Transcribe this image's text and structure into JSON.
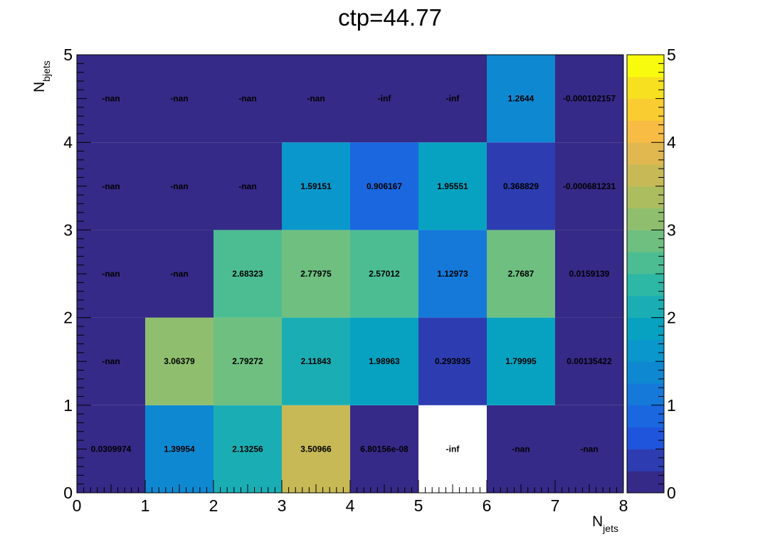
{
  "chart_data": {
    "type": "heatmap",
    "title": "ctp=44.77",
    "xlabel": {
      "main": "N",
      "sub": "jets"
    },
    "ylabel": {
      "main": "N",
      "sub": "bjets"
    },
    "xlim": [
      0,
      8
    ],
    "ylim": [
      0,
      5
    ],
    "zlim": [
      0,
      5
    ],
    "x_ticks": [
      "0",
      "1",
      "2",
      "3",
      "4",
      "5",
      "6",
      "7",
      "8"
    ],
    "y_ticks": [
      "0",
      "1",
      "2",
      "3",
      "4",
      "5"
    ],
    "z_ticks": [
      "0",
      "1",
      "2",
      "3",
      "4",
      "5"
    ],
    "colorscale": "parula-like",
    "cells": [
      {
        "x": 0,
        "y": 0,
        "value": 0.0309974,
        "label": "0.0309974"
      },
      {
        "x": 1,
        "y": 0,
        "value": 1.39954,
        "label": "1.39954"
      },
      {
        "x": 2,
        "y": 0,
        "value": 2.13256,
        "label": "2.13256"
      },
      {
        "x": 3,
        "y": 0,
        "value": 3.50966,
        "label": "3.50966"
      },
      {
        "x": 4,
        "y": 0,
        "value": 6.80156e-08,
        "label": "6.80156e-08"
      },
      {
        "x": 5,
        "y": 0,
        "value": null,
        "label": "-inf",
        "fill": "#ffffff"
      },
      {
        "x": 6,
        "y": 0,
        "value": null,
        "label": "-nan"
      },
      {
        "x": 7,
        "y": 0,
        "value": null,
        "label": "-nan"
      },
      {
        "x": 0,
        "y": 1,
        "value": null,
        "label": "-nan"
      },
      {
        "x": 1,
        "y": 1,
        "value": 3.06379,
        "label": "3.06379"
      },
      {
        "x": 2,
        "y": 1,
        "value": 2.79272,
        "label": "2.79272"
      },
      {
        "x": 3,
        "y": 1,
        "value": 2.11843,
        "label": "2.11843"
      },
      {
        "x": 4,
        "y": 1,
        "value": 1.98963,
        "label": "1.98963"
      },
      {
        "x": 5,
        "y": 1,
        "value": 0.293935,
        "label": "0.293935"
      },
      {
        "x": 6,
        "y": 1,
        "value": 1.79995,
        "label": "1.79995"
      },
      {
        "x": 7,
        "y": 1,
        "value": 0.00135422,
        "label": "0.00135422"
      },
      {
        "x": 0,
        "y": 2,
        "value": null,
        "label": "-nan"
      },
      {
        "x": 1,
        "y": 2,
        "value": null,
        "label": "-nan"
      },
      {
        "x": 2,
        "y": 2,
        "value": 2.68323,
        "label": "2.68323"
      },
      {
        "x": 3,
        "y": 2,
        "value": 2.77975,
        "label": "2.77975"
      },
      {
        "x": 4,
        "y": 2,
        "value": 2.57012,
        "label": "2.57012"
      },
      {
        "x": 5,
        "y": 2,
        "value": 1.12973,
        "label": "1.12973"
      },
      {
        "x": 6,
        "y": 2,
        "value": 2.7687,
        "label": "2.7687"
      },
      {
        "x": 7,
        "y": 2,
        "value": 0.0159139,
        "label": "0.0159139"
      },
      {
        "x": 0,
        "y": 3,
        "value": null,
        "label": "-nan"
      },
      {
        "x": 1,
        "y": 3,
        "value": null,
        "label": "-nan"
      },
      {
        "x": 2,
        "y": 3,
        "value": null,
        "label": "-nan"
      },
      {
        "x": 3,
        "y": 3,
        "value": 1.59151,
        "label": "1.59151"
      },
      {
        "x": 4,
        "y": 3,
        "value": 0.906167,
        "label": "0.906167"
      },
      {
        "x": 5,
        "y": 3,
        "value": 1.95551,
        "label": "1.95551"
      },
      {
        "x": 6,
        "y": 3,
        "value": 0.368829,
        "label": "0.368829"
      },
      {
        "x": 7,
        "y": 3,
        "value": -0.000681231,
        "label": "-0.000681231"
      },
      {
        "x": 0,
        "y": 4,
        "value": null,
        "label": "-nan"
      },
      {
        "x": 1,
        "y": 4,
        "value": null,
        "label": "-nan"
      },
      {
        "x": 2,
        "y": 4,
        "value": null,
        "label": "-nan"
      },
      {
        "x": 3,
        "y": 4,
        "value": null,
        "label": "-nan"
      },
      {
        "x": 4,
        "y": 4,
        "value": null,
        "label": "-inf"
      },
      {
        "x": 5,
        "y": 4,
        "value": null,
        "label": "-inf"
      },
      {
        "x": 6,
        "y": 4,
        "value": 1.2644,
        "label": "1.2644"
      },
      {
        "x": 7,
        "y": 4,
        "value": -0.000102157,
        "label": "-0.000102157"
      }
    ]
  }
}
